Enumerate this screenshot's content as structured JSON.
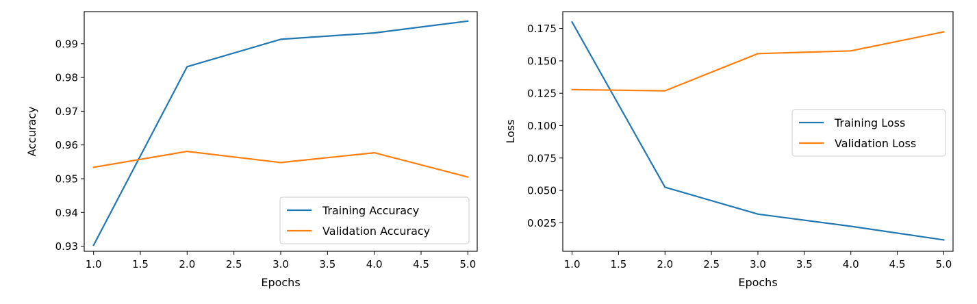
{
  "colors": {
    "training": "#1f77b4",
    "validation": "#ff7f0e"
  },
  "chart_data": [
    {
      "type": "line",
      "title": "",
      "xlabel": "Epochs",
      "ylabel": "Accuracy",
      "x": [
        1,
        2,
        3,
        4,
        5
      ],
      "xlim": [
        0.9,
        5.1
      ],
      "ylim": [
        0.9285,
        0.9995
      ],
      "xticks": [
        1.0,
        1.5,
        2.0,
        2.5,
        3.0,
        3.5,
        4.0,
        4.5,
        5.0
      ],
      "xtick_labels": [
        "1.0",
        "1.5",
        "2.0",
        "2.5",
        "3.0",
        "3.5",
        "4.0",
        "4.5",
        "5.0"
      ],
      "yticks": [
        0.93,
        0.94,
        0.95,
        0.96,
        0.97,
        0.98,
        0.99
      ],
      "ytick_labels": [
        "0.93",
        "0.94",
        "0.95",
        "0.96",
        "0.97",
        "0.98",
        "0.99"
      ],
      "grid": false,
      "legend_position": "lower-right",
      "series": [
        {
          "name": "Training Accuracy",
          "color": "#1f77b4",
          "values": [
            0.9303,
            0.9832,
            0.9913,
            0.9932,
            0.9967
          ]
        },
        {
          "name": "Validation Accuracy",
          "color": "#ff7f0e",
          "values": [
            0.9534,
            0.9581,
            0.9548,
            0.9577,
            0.9505
          ]
        }
      ]
    },
    {
      "type": "line",
      "title": "",
      "xlabel": "Epochs",
      "ylabel": "Loss",
      "x": [
        1,
        2,
        3,
        4,
        5
      ],
      "xlim": [
        0.9,
        5.1
      ],
      "ylim": [
        0.003,
        0.188
      ],
      "xticks": [
        1.0,
        1.5,
        2.0,
        2.5,
        3.0,
        3.5,
        4.0,
        4.5,
        5.0
      ],
      "xtick_labels": [
        "1.0",
        "1.5",
        "2.0",
        "2.5",
        "3.0",
        "3.5",
        "4.0",
        "4.5",
        "5.0"
      ],
      "yticks": [
        0.025,
        0.05,
        0.075,
        0.1,
        0.125,
        0.15,
        0.175
      ],
      "ytick_labels": [
        "0.025",
        "0.050",
        "0.075",
        "0.100",
        "0.125",
        "0.150",
        "0.175"
      ],
      "grid": false,
      "legend_position": "center-right",
      "series": [
        {
          "name": "Training Loss",
          "color": "#1f77b4",
          "values": [
            0.1799,
            0.0525,
            0.0317,
            0.0223,
            0.0118
          ]
        },
        {
          "name": "Validation Loss",
          "color": "#ff7f0e",
          "values": [
            0.1278,
            0.1269,
            0.1556,
            0.1577,
            0.1724
          ]
        }
      ]
    }
  ]
}
